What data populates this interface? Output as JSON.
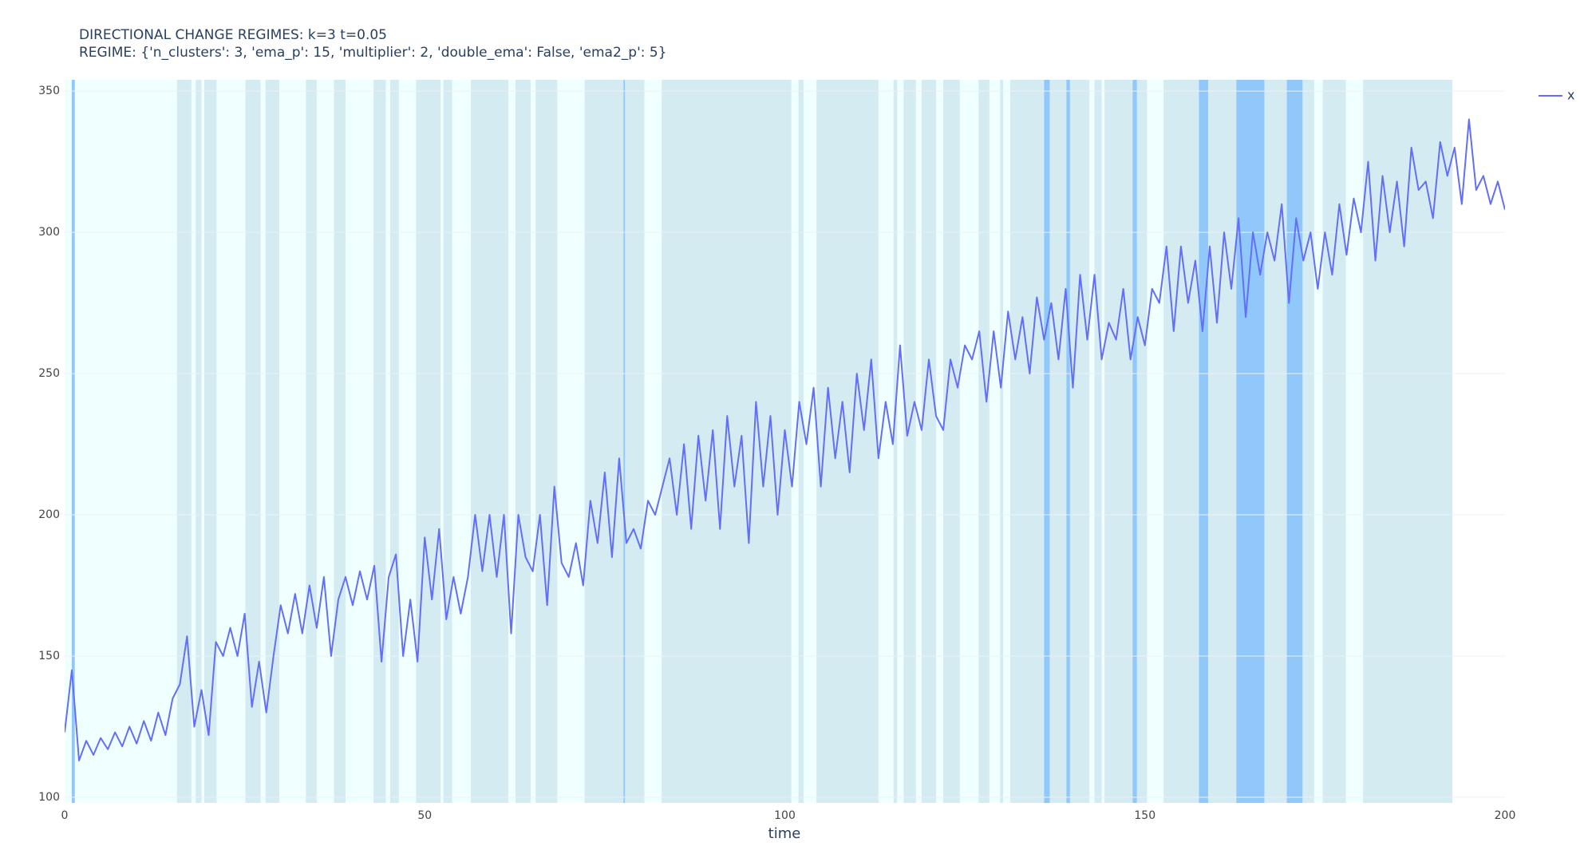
{
  "chart_data": {
    "type": "line",
    "title": "DIRECTIONAL CHANGE REGIMES: k=3 t=0.05",
    "subtitle": "REGIME: {'n_clusters': 3, 'ema_p': 15, 'multiplier': 2, 'double_ema': False, 'ema2_p': 5}",
    "x_label": "time",
    "xlim": [
      0,
      200
    ],
    "xticks": [
      0,
      50,
      100,
      150,
      200
    ],
    "ylim": [
      98,
      354
    ],
    "yticks": [
      100,
      150,
      200,
      250,
      300,
      350
    ],
    "grid": true,
    "legend": "top-right",
    "shapes": [
      {
        "x0": 0,
        "x1": 192.7,
        "color": "#f0ffff"
      },
      {
        "x0": 0.99,
        "x1": 1.41,
        "color": "#90c8fc"
      },
      {
        "x0": 15.6,
        "x1": 17.6,
        "color": "#d4ebf2"
      },
      {
        "x0": 18.2,
        "x1": 19.0,
        "color": "#d4ebf2"
      },
      {
        "x0": 19.4,
        "x1": 21.1,
        "color": "#d4ebf2"
      },
      {
        "x0": 25.1,
        "x1": 27.2,
        "color": "#d4ebf2"
      },
      {
        "x0": 27.9,
        "x1": 29.8,
        "color": "#d4ebf2"
      },
      {
        "x0": 33.5,
        "x1": 35.0,
        "color": "#d4ebf2"
      },
      {
        "x0": 37.4,
        "x1": 39.0,
        "color": "#d4ebf2"
      },
      {
        "x0": 42.9,
        "x1": 44.6,
        "color": "#d4ebf2"
      },
      {
        "x0": 45.2,
        "x1": 46.4,
        "color": "#d4ebf2"
      },
      {
        "x0": 48.8,
        "x1": 52.2,
        "color": "#d4ebf2"
      },
      {
        "x0": 52.6,
        "x1": 53.8,
        "color": "#d4ebf2"
      },
      {
        "x0": 56.4,
        "x1": 61.6,
        "color": "#d4ebf2"
      },
      {
        "x0": 62.6,
        "x1": 64.7,
        "color": "#d4ebf2"
      },
      {
        "x0": 65.4,
        "x1": 68.4,
        "color": "#d4ebf2"
      },
      {
        "x0": 72.2,
        "x1": 80.5,
        "color": "#d4ebf2"
      },
      {
        "x0": 77.6,
        "x1": 77.8,
        "color": "#90c8fc"
      },
      {
        "x0": 82.9,
        "x1": 100.9,
        "color": "#d4ebf2"
      },
      {
        "x0": 101.9,
        "x1": 102.6,
        "color": "#d4ebf2"
      },
      {
        "x0": 104.4,
        "x1": 113.0,
        "color": "#d4ebf2"
      },
      {
        "x0": 115.1,
        "x1": 115.6,
        "color": "#d4ebf2"
      },
      {
        "x0": 116.5,
        "x1": 118.2,
        "color": "#d4ebf2"
      },
      {
        "x0": 119.0,
        "x1": 121.0,
        "color": "#d4ebf2"
      },
      {
        "x0": 122.0,
        "x1": 124.3,
        "color": "#d4ebf2"
      },
      {
        "x0": 126.9,
        "x1": 128.4,
        "color": "#d4ebf2"
      },
      {
        "x0": 129.9,
        "x1": 130.3,
        "color": "#d4ebf2"
      },
      {
        "x0": 131.3,
        "x1": 136.0,
        "color": "#d4ebf2"
      },
      {
        "x0": 136.0,
        "x1": 136.8,
        "color": "#90c8fc"
      },
      {
        "x0": 136.8,
        "x1": 139.1,
        "color": "#d4ebf2"
      },
      {
        "x0": 139.1,
        "x1": 139.6,
        "color": "#90c8fc"
      },
      {
        "x0": 139.6,
        "x1": 142.3,
        "color": "#d4ebf2"
      },
      {
        "x0": 143.0,
        "x1": 144.0,
        "color": "#d4ebf2"
      },
      {
        "x0": 144.4,
        "x1": 148.3,
        "color": "#d4ebf2"
      },
      {
        "x0": 148.3,
        "x1": 148.9,
        "color": "#90c8fc"
      },
      {
        "x0": 148.9,
        "x1": 150.3,
        "color": "#d4ebf2"
      },
      {
        "x0": 152.6,
        "x1": 157.5,
        "color": "#d4ebf2"
      },
      {
        "x0": 157.5,
        "x1": 158.8,
        "color": "#90c8fc"
      },
      {
        "x0": 158.8,
        "x1": 162.7,
        "color": "#d4ebf2"
      },
      {
        "x0": 162.7,
        "x1": 166.6,
        "color": "#90c8fc"
      },
      {
        "x0": 166.6,
        "x1": 169.7,
        "color": "#d4ebf2"
      },
      {
        "x0": 169.7,
        "x1": 171.9,
        "color": "#90c8fc"
      },
      {
        "x0": 171.9,
        "x1": 173.5,
        "color": "#d4ebf2"
      },
      {
        "x0": 174.7,
        "x1": 177.9,
        "color": "#d4ebf2"
      },
      {
        "x0": 180.3,
        "x1": 192.7,
        "color": "#d4ebf2"
      }
    ],
    "x": [
      0,
      1,
      2,
      3,
      4,
      5,
      6,
      7,
      8,
      9,
      10,
      11,
      12,
      13,
      14,
      15,
      16,
      17,
      18,
      19,
      20,
      21,
      22,
      23,
      24,
      25,
      26,
      27,
      28,
      29,
      30,
      31,
      32,
      33,
      34,
      35,
      36,
      37,
      38,
      39,
      40,
      41,
      42,
      43,
      44,
      45,
      46,
      47,
      48,
      49,
      50,
      51,
      52,
      53,
      54,
      55,
      56,
      57,
      58,
      59,
      60,
      61,
      62,
      63,
      64,
      65,
      66,
      67,
      68,
      69,
      70,
      71,
      72,
      73,
      74,
      75,
      76,
      77,
      78,
      79,
      80,
      81,
      82,
      83,
      84,
      85,
      86,
      87,
      88,
      89,
      90,
      91,
      92,
      93,
      94,
      95,
      96,
      97,
      98,
      99,
      100,
      101,
      102,
      103,
      104,
      105,
      106,
      107,
      108,
      109,
      110,
      111,
      112,
      113,
      114,
      115,
      116,
      117,
      118,
      119,
      120,
      121,
      122,
      123,
      124,
      125,
      126,
      127,
      128,
      129,
      130,
      131,
      132,
      133,
      134,
      135,
      136,
      137,
      138,
      139,
      140,
      141,
      142,
      143,
      144,
      145,
      146,
      147,
      148,
      149,
      150,
      151,
      152,
      153,
      154,
      155,
      156,
      157,
      158,
      159,
      160,
      161,
      162,
      163,
      164,
      165,
      166,
      167,
      168,
      169,
      170,
      171,
      172,
      173,
      174,
      175,
      176,
      177,
      178,
      179,
      180,
      181,
      182,
      183,
      184,
      185,
      186,
      187,
      188,
      189,
      190,
      191,
      192,
      193,
      194,
      195,
      196,
      197,
      198,
      199,
      200
    ],
    "series": [
      {
        "name": "x",
        "color": "#636efa",
        "values": [
          123,
          145,
          113,
          120,
          115,
          121,
          117,
          123,
          118,
          125,
          119,
          127,
          120,
          130,
          122,
          135,
          140,
          157,
          125,
          138,
          122,
          155,
          150,
          160,
          150,
          165,
          132,
          148,
          130,
          150,
          168,
          158,
          172,
          158,
          175,
          160,
          178,
          150,
          170,
          178,
          168,
          180,
          170,
          182,
          148,
          178,
          186,
          150,
          170,
          148,
          192,
          170,
          195,
          163,
          178,
          165,
          178,
          200,
          180,
          200,
          178,
          200,
          158,
          200,
          185,
          180,
          200,
          168,
          210,
          183,
          178,
          190,
          175,
          205,
          190,
          215,
          185,
          220,
          190,
          195,
          188,
          205,
          200,
          210,
          220,
          200,
          225,
          195,
          228,
          205,
          230,
          195,
          235,
          210,
          228,
          190,
          240,
          210,
          235,
          200,
          230,
          210,
          240,
          225,
          245,
          210,
          245,
          220,
          240,
          215,
          250,
          230,
          255,
          220,
          240,
          225,
          260,
          228,
          240,
          230,
          255,
          235,
          230,
          255,
          245,
          260,
          255,
          265,
          240,
          265,
          245,
          272,
          255,
          270,
          250,
          277,
          262,
          275,
          255,
          280,
          245,
          285,
          262,
          285,
          255,
          268,
          262,
          280,
          255,
          270,
          260,
          280,
          275,
          295,
          265,
          295,
          275,
          290,
          265,
          295,
          268,
          300,
          280,
          305,
          270,
          300,
          285,
          300,
          290,
          310,
          275,
          305,
          290,
          300,
          280,
          300,
          285,
          310,
          292,
          312,
          300,
          325,
          290,
          320,
          300,
          318,
          295,
          330,
          315,
          318,
          305,
          332,
          320,
          330,
          310,
          340,
          315,
          320,
          310,
          318,
          308
        ]
      }
    ]
  }
}
